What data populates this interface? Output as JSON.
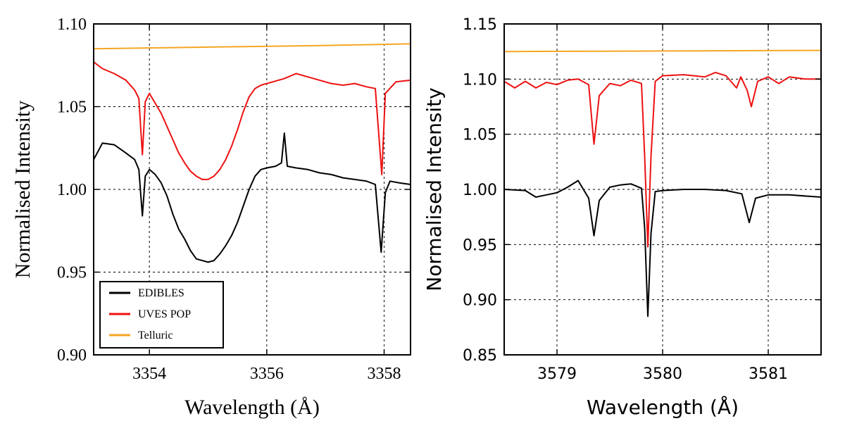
{
  "chart_data": [
    {
      "type": "line",
      "xlabel": "Wavelength (Å)",
      "ylabel": "Normalised Intensity",
      "xlim": [
        3353.05,
        3358.45
      ],
      "ylim": [
        0.9,
        1.1
      ],
      "xticks": [
        3354,
        3356,
        3358
      ],
      "xtick_labels": [
        "3354",
        "3356",
        "3358"
      ],
      "yticks": [
        0.9,
        0.95,
        1.0,
        1.05,
        1.1
      ],
      "ytick_labels": [
        "0.90",
        "0.95",
        "1.00",
        "1.05",
        "1.10"
      ],
      "grid": true,
      "legend_position": "bottom-left",
      "series": [
        {
          "name": "EDIBLES",
          "color": "#000000",
          "points": [
            [
              3353.05,
              1.018
            ],
            [
              3353.2,
              1.028
            ],
            [
              3353.4,
              1.027
            ],
            [
              3353.6,
              1.022
            ],
            [
              3353.75,
              1.018
            ],
            [
              3353.82,
              1.012
            ],
            [
              3353.88,
              0.984
            ],
            [
              3353.93,
              1.008
            ],
            [
              3354.0,
              1.012
            ],
            [
              3354.1,
              1.009
            ],
            [
              3354.2,
              1.004
            ],
            [
              3354.3,
              0.996
            ],
            [
              3354.4,
              0.985
            ],
            [
              3354.5,
              0.976
            ],
            [
              3354.6,
              0.97
            ],
            [
              3354.7,
              0.963
            ],
            [
              3354.8,
              0.958
            ],
            [
              3354.9,
              0.957
            ],
            [
              3355.0,
              0.956
            ],
            [
              3355.1,
              0.957
            ],
            [
              3355.2,
              0.961
            ],
            [
              3355.3,
              0.966
            ],
            [
              3355.4,
              0.972
            ],
            [
              3355.5,
              0.98
            ],
            [
              3355.6,
              0.99
            ],
            [
              3355.7,
              1.0
            ],
            [
              3355.8,
              1.008
            ],
            [
              3355.9,
              1.012
            ],
            [
              3356.0,
              1.013
            ],
            [
              3356.15,
              1.014
            ],
            [
              3356.25,
              1.016
            ],
            [
              3356.3,
              1.034
            ],
            [
              3356.35,
              1.014
            ],
            [
              3356.5,
              1.013
            ],
            [
              3356.7,
              1.012
            ],
            [
              3356.9,
              1.01
            ],
            [
              3357.1,
              1.009
            ],
            [
              3357.3,
              1.007
            ],
            [
              3357.5,
              1.006
            ],
            [
              3357.7,
              1.005
            ],
            [
              3357.85,
              1.003
            ],
            [
              3357.95,
              0.962
            ],
            [
              3358.02,
              0.998
            ],
            [
              3358.1,
              1.005
            ],
            [
              3358.25,
              1.004
            ],
            [
              3358.45,
              1.003
            ]
          ]
        },
        {
          "name": "UVES POP",
          "color": "#ee1111",
          "points": [
            [
              3353.05,
              1.077
            ],
            [
              3353.2,
              1.073
            ],
            [
              3353.4,
              1.07
            ],
            [
              3353.6,
              1.066
            ],
            [
              3353.75,
              1.06
            ],
            [
              3353.82,
              1.055
            ],
            [
              3353.88,
              1.021
            ],
            [
              3353.93,
              1.053
            ],
            [
              3354.0,
              1.058
            ],
            [
              3354.1,
              1.052
            ],
            [
              3354.2,
              1.046
            ],
            [
              3354.3,
              1.038
            ],
            [
              3354.4,
              1.03
            ],
            [
              3354.5,
              1.022
            ],
            [
              3354.6,
              1.016
            ],
            [
              3354.7,
              1.011
            ],
            [
              3354.8,
              1.008
            ],
            [
              3354.9,
              1.006
            ],
            [
              3355.0,
              1.006
            ],
            [
              3355.1,
              1.008
            ],
            [
              3355.2,
              1.012
            ],
            [
              3355.3,
              1.018
            ],
            [
              3355.4,
              1.026
            ],
            [
              3355.5,
              1.036
            ],
            [
              3355.6,
              1.047
            ],
            [
              3355.7,
              1.056
            ],
            [
              3355.8,
              1.061
            ],
            [
              3355.9,
              1.063
            ],
            [
              3356.1,
              1.065
            ],
            [
              3356.3,
              1.067
            ],
            [
              3356.5,
              1.07
            ],
            [
              3356.7,
              1.068
            ],
            [
              3356.9,
              1.066
            ],
            [
              3357.1,
              1.064
            ],
            [
              3357.3,
              1.063
            ],
            [
              3357.5,
              1.064
            ],
            [
              3357.7,
              1.062
            ],
            [
              3357.85,
              1.061
            ],
            [
              3357.96,
              1.009
            ],
            [
              3358.02,
              1.058
            ],
            [
              3358.2,
              1.065
            ],
            [
              3358.45,
              1.066
            ]
          ]
        },
        {
          "name": "Telluric",
          "color": "#f5a623",
          "points": [
            [
              3353.05,
              1.085
            ],
            [
              3355.0,
              1.086
            ],
            [
              3357.0,
              1.087
            ],
            [
              3358.45,
              1.088
            ]
          ]
        }
      ]
    },
    {
      "type": "line",
      "xlabel": "Wavelength (Å)",
      "ylabel": "Normalised Intensity",
      "xlim": [
        3578.5,
        3581.5
      ],
      "ylim": [
        0.85,
        1.15
      ],
      "xticks": [
        3579,
        3580,
        3581
      ],
      "xtick_labels": [
        "3579",
        "3580",
        "3581"
      ],
      "yticks": [
        0.85,
        0.9,
        0.95,
        1.0,
        1.05,
        1.1,
        1.15
      ],
      "ytick_labels": [
        "0.85",
        "0.90",
        "0.95",
        "1.00",
        "1.05",
        "1.10",
        "1.15"
      ],
      "grid": true,
      "series": [
        {
          "name": "EDIBLES",
          "color": "#000000",
          "points": [
            [
              3578.5,
              1.0
            ],
            [
              3578.7,
              0.999
            ],
            [
              3578.8,
              0.993
            ],
            [
              3578.9,
              0.995
            ],
            [
              3579.0,
              0.997
            ],
            [
              3579.1,
              1.002
            ],
            [
              3579.2,
              1.008
            ],
            [
              3579.25,
              1.0
            ],
            [
              3579.3,
              0.992
            ],
            [
              3579.35,
              0.958
            ],
            [
              3579.4,
              0.99
            ],
            [
              3579.5,
              1.002
            ],
            [
              3579.6,
              1.004
            ],
            [
              3579.7,
              1.005
            ],
            [
              3579.8,
              1.001
            ],
            [
              3579.83,
              0.965
            ],
            [
              3579.86,
              0.885
            ],
            [
              3579.89,
              0.96
            ],
            [
              3579.93,
              0.998
            ],
            [
              3580.0,
              0.999
            ],
            [
              3580.2,
              1.0
            ],
            [
              3580.4,
              1.0
            ],
            [
              3580.6,
              0.999
            ],
            [
              3580.75,
              0.996
            ],
            [
              3580.82,
              0.97
            ],
            [
              3580.88,
              0.992
            ],
            [
              3581.0,
              0.995
            ],
            [
              3581.2,
              0.995
            ],
            [
              3581.5,
              0.993
            ]
          ]
        },
        {
          "name": "UVES POP",
          "color": "#ee1111",
          "points": [
            [
              3578.5,
              1.098
            ],
            [
              3578.6,
              1.092
            ],
            [
              3578.7,
              1.098
            ],
            [
              3578.8,
              1.092
            ],
            [
              3578.9,
              1.097
            ],
            [
              3579.0,
              1.095
            ],
            [
              3579.1,
              1.099
            ],
            [
              3579.2,
              1.1
            ],
            [
              3579.3,
              1.095
            ],
            [
              3579.35,
              1.041
            ],
            [
              3579.4,
              1.085
            ],
            [
              3579.5,
              1.096
            ],
            [
              3579.6,
              1.094
            ],
            [
              3579.7,
              1.099
            ],
            [
              3579.8,
              1.096
            ],
            [
              3579.83,
              1.03
            ],
            [
              3579.86,
              0.948
            ],
            [
              3579.89,
              1.03
            ],
            [
              3579.93,
              1.098
            ],
            [
              3580.0,
              1.103
            ],
            [
              3580.2,
              1.104
            ],
            [
              3580.4,
              1.102
            ],
            [
              3580.5,
              1.106
            ],
            [
              3580.6,
              1.103
            ],
            [
              3580.7,
              1.092
            ],
            [
              3580.74,
              1.102
            ],
            [
              3580.8,
              1.09
            ],
            [
              3580.84,
              1.075
            ],
            [
              3580.9,
              1.098
            ],
            [
              3581.0,
              1.102
            ],
            [
              3581.1,
              1.096
            ],
            [
              3581.2,
              1.102
            ],
            [
              3581.35,
              1.1
            ],
            [
              3581.5,
              1.1
            ]
          ]
        },
        {
          "name": "Telluric",
          "color": "#f5a623",
          "points": [
            [
              3578.5,
              1.125
            ],
            [
              3581.5,
              1.126
            ]
          ]
        }
      ]
    }
  ]
}
